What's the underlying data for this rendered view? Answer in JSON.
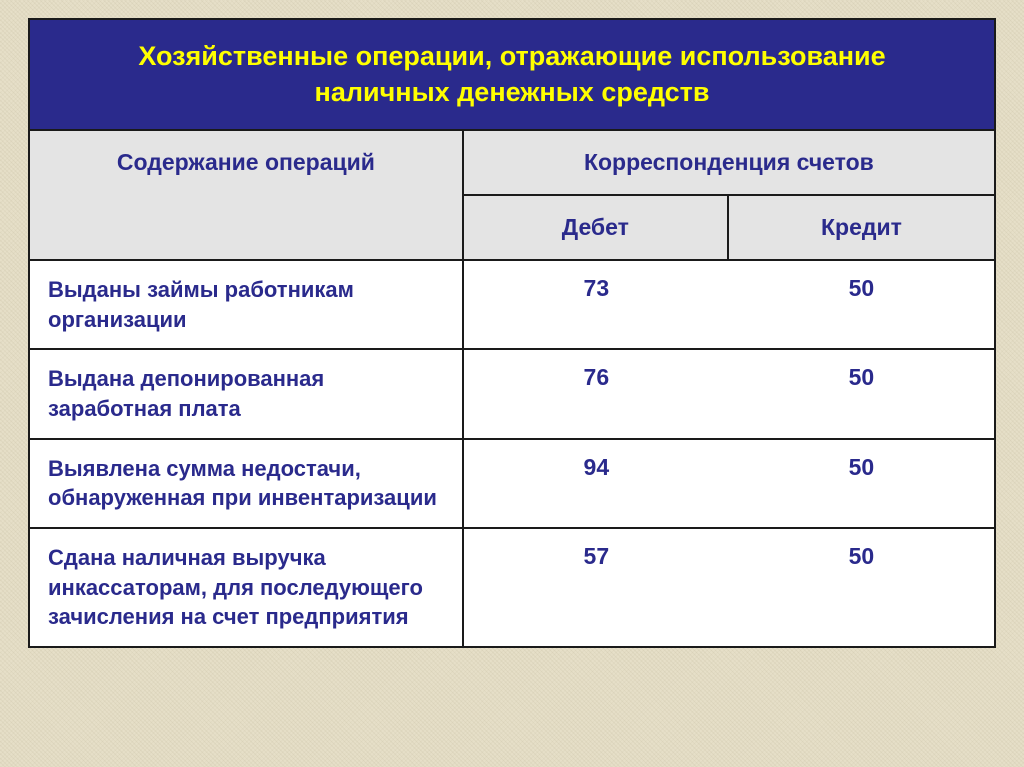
{
  "table": {
    "type": "table",
    "title": "Хозяйственные операции, отражающие использование наличных  денежных средств",
    "title_color": "#ffff00",
    "title_bg": "#2a2a8c",
    "title_fontsize": 27,
    "header_bg": "#e4e4e4",
    "header_color": "#2a2a8c",
    "header_fontsize": 23,
    "cell_color": "#2a2a8c",
    "cell_fontsize": 22,
    "border_color": "#1a1a1a",
    "background_color": "#ffffff",
    "page_bg": "#e6dfc8",
    "columns": {
      "operations": "Содержание операций",
      "correspondence": "Корреспонденция счетов",
      "debit": "Дебет",
      "credit": "Кредит"
    },
    "col_widths": [
      "45%",
      "27.5%",
      "27.5%"
    ],
    "rows": [
      {
        "desc": "Выданы займы работникам организации",
        "debit": "73",
        "credit": "50"
      },
      {
        "desc": "Выдана депонированная заработная плата",
        "debit": "76",
        "credit": "50"
      },
      {
        "desc": "Выявлена сумма недостачи, обнаруженная при инвентаризации",
        "debit": "94",
        "credit": "50"
      },
      {
        "desc": "Сдана наличная выручка инкассаторам, для последующего зачисления на счет предприятия",
        "debit": "57",
        "credit": "50"
      }
    ]
  }
}
